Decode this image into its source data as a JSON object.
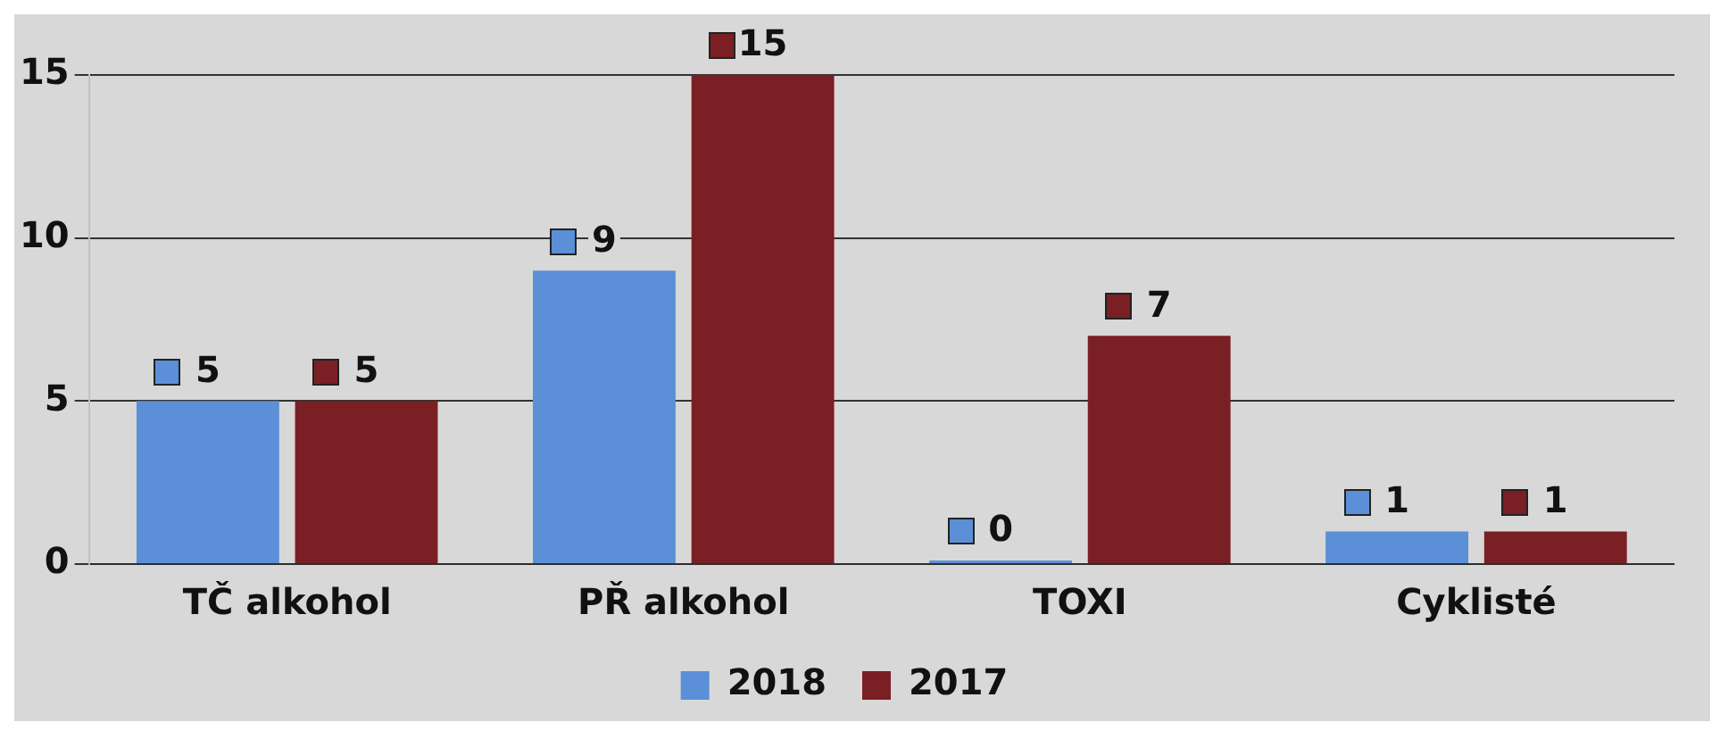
{
  "chart_data": {
    "type": "bar",
    "categories": [
      "TČ alkohol",
      "PŘ alkohol",
      "TOXI",
      "Cyklisté"
    ],
    "series": [
      {
        "name": "2018",
        "color": "#5b8fd8",
        "values": [
          5,
          9,
          0,
          1
        ]
      },
      {
        "name": "2017",
        "color": "#7a1f24",
        "values": [
          5,
          15,
          7,
          1
        ]
      }
    ],
    "ylim": [
      0,
      15
    ],
    "yticks": [
      0,
      5,
      10,
      15
    ],
    "grid": "y",
    "legend": "bottom",
    "data_labels": true
  }
}
